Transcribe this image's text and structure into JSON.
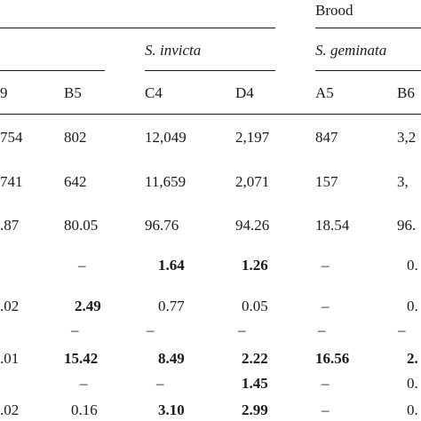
{
  "headers": {
    "group_top": "Brood",
    "species_1": "S. invicta",
    "species_2": "S. geminata",
    "col_0": "9",
    "col_1": "B5",
    "col_2": "C4",
    "col_3": "D4",
    "col_4": "A5",
    "col_5": "B6"
  },
  "rows": [
    [
      "754",
      "802",
      "12,049",
      "2,197",
      "847",
      "3,2"
    ],
    [
      "741",
      "642",
      "11,659",
      "2,071",
      "157",
      "3,"
    ],
    [
      ".87",
      "80.05",
      "96.76",
      "94.26",
      "18.54",
      "96."
    ],
    [
      "",
      "–",
      "1.64",
      "1.26",
      "–",
      "0."
    ],
    [
      ".02",
      "2.49",
      "0.77",
      "0.05",
      "–",
      "0."
    ],
    [
      "",
      "–",
      "–",
      "–",
      "–",
      "–"
    ],
    [
      ".01",
      "15.42",
      "8.49",
      "2.22",
      "16.56",
      "2."
    ],
    [
      "",
      "–",
      "–",
      "1.45",
      "–",
      "0."
    ],
    [
      ".02",
      "0.16",
      "3.10",
      "2.99",
      "–",
      "0."
    ]
  ]
}
